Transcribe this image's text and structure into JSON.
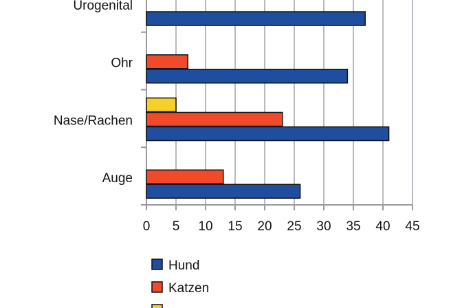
{
  "chart_data": {
    "type": "hbar",
    "categories": [
      "Urogenital",
      "Ohr",
      "Nase/Rachen",
      "Auge"
    ],
    "series": [
      {
        "name": "Hund",
        "color": "#1f4ea1",
        "values": [
          37,
          34,
          41,
          26
        ]
      },
      {
        "name": "Katzen",
        "color": "#f04a2a",
        "values": [
          null,
          7,
          23,
          13
        ]
      },
      {
        "color": "#f7cf2a",
        "values": [
          null,
          null,
          5,
          null
        ]
      }
    ],
    "xlim": [
      0,
      45
    ],
    "xticks": [
      0,
      5,
      10,
      15,
      20,
      25,
      30,
      35,
      40,
      45
    ],
    "grid": true
  }
}
